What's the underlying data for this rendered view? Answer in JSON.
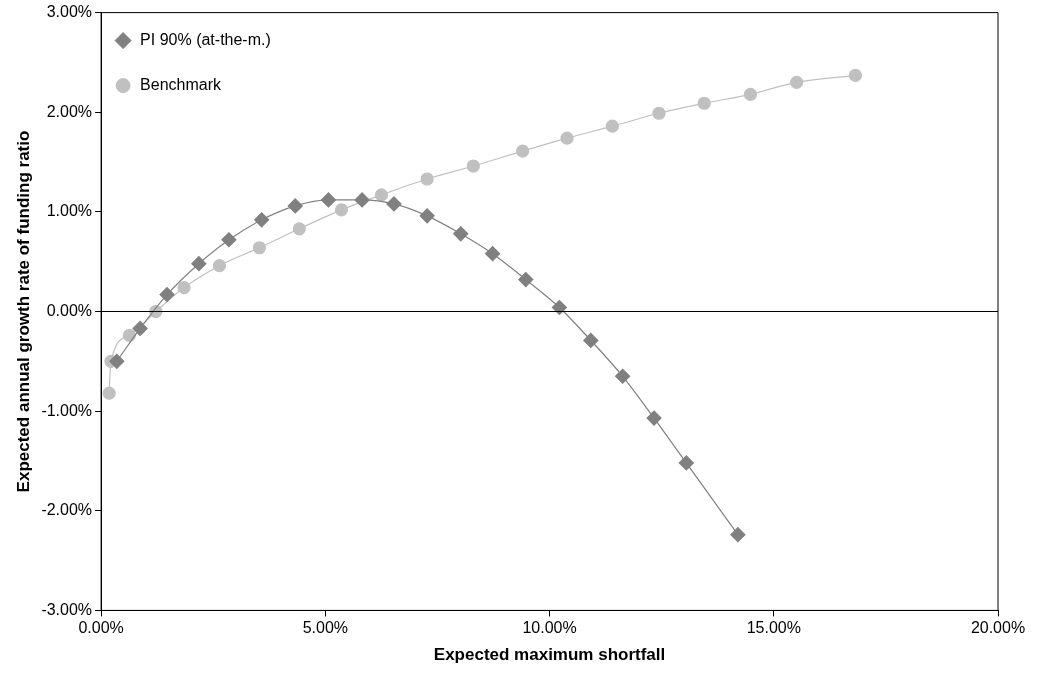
{
  "chart_data": {
    "type": "line",
    "xlabel": "Expected maximum shortfall",
    "ylabel": "Expected annual growth rate of funding ratio",
    "xlim": [
      0,
      20
    ],
    "ylim": [
      -3,
      3
    ],
    "xticks": [
      {
        "value": 0,
        "label": "0.00%"
      },
      {
        "value": 5,
        "label": "5.00%"
      },
      {
        "value": 10,
        "label": "10.00%"
      },
      {
        "value": 15,
        "label": "15.00%"
      },
      {
        "value": 20,
        "label": "20.00%"
      }
    ],
    "yticks": [
      {
        "value": -3,
        "label": "-3.00%"
      },
      {
        "value": -2,
        "label": "-2.00%"
      },
      {
        "value": -1,
        "label": "-1.00%"
      },
      {
        "value": 0,
        "label": "0.00%"
      },
      {
        "value": 1,
        "label": "1.00%"
      },
      {
        "value": 2,
        "label": "2.00%"
      },
      {
        "value": 3,
        "label": "3.00%"
      }
    ],
    "grid": false,
    "legend": "top left",
    "ref_lines": [
      {
        "axis": "y",
        "value": 0,
        "color": "#000000"
      }
    ],
    "series": [
      {
        "name": "PI 90% (at-the-m.)",
        "color": "#808080",
        "marker": "diamond",
        "x": [
          0.35,
          0.87,
          1.47,
          2.18,
          2.85,
          3.58,
          4.33,
          5.07,
          5.82,
          6.53,
          7.27,
          8.02,
          8.73,
          9.47,
          10.22,
          10.92,
          11.63,
          12.33,
          13.05,
          14.2
        ],
        "values": [
          -0.5,
          -0.17,
          0.17,
          0.48,
          0.72,
          0.92,
          1.06,
          1.12,
          1.12,
          1.08,
          0.96,
          0.78,
          0.58,
          0.32,
          0.04,
          -0.29,
          -0.65,
          -1.07,
          -1.52,
          -2.24
        ]
      },
      {
        "name": "Benchmark",
        "color": "#c0c0c0",
        "marker": "circle",
        "x": [
          0.18,
          0.22,
          0.63,
          1.22,
          1.85,
          2.64,
          3.53,
          4.42,
          5.36,
          6.25,
          7.27,
          8.3,
          9.4,
          10.39,
          11.4,
          12.44,
          13.45,
          14.48,
          15.51,
          16.82
        ],
        "values": [
          -0.82,
          -0.5,
          -0.24,
          0.0,
          0.24,
          0.46,
          0.64,
          0.83,
          1.02,
          1.17,
          1.33,
          1.46,
          1.61,
          1.74,
          1.86,
          1.99,
          2.09,
          2.18,
          2.3,
          2.37
        ]
      }
    ]
  }
}
